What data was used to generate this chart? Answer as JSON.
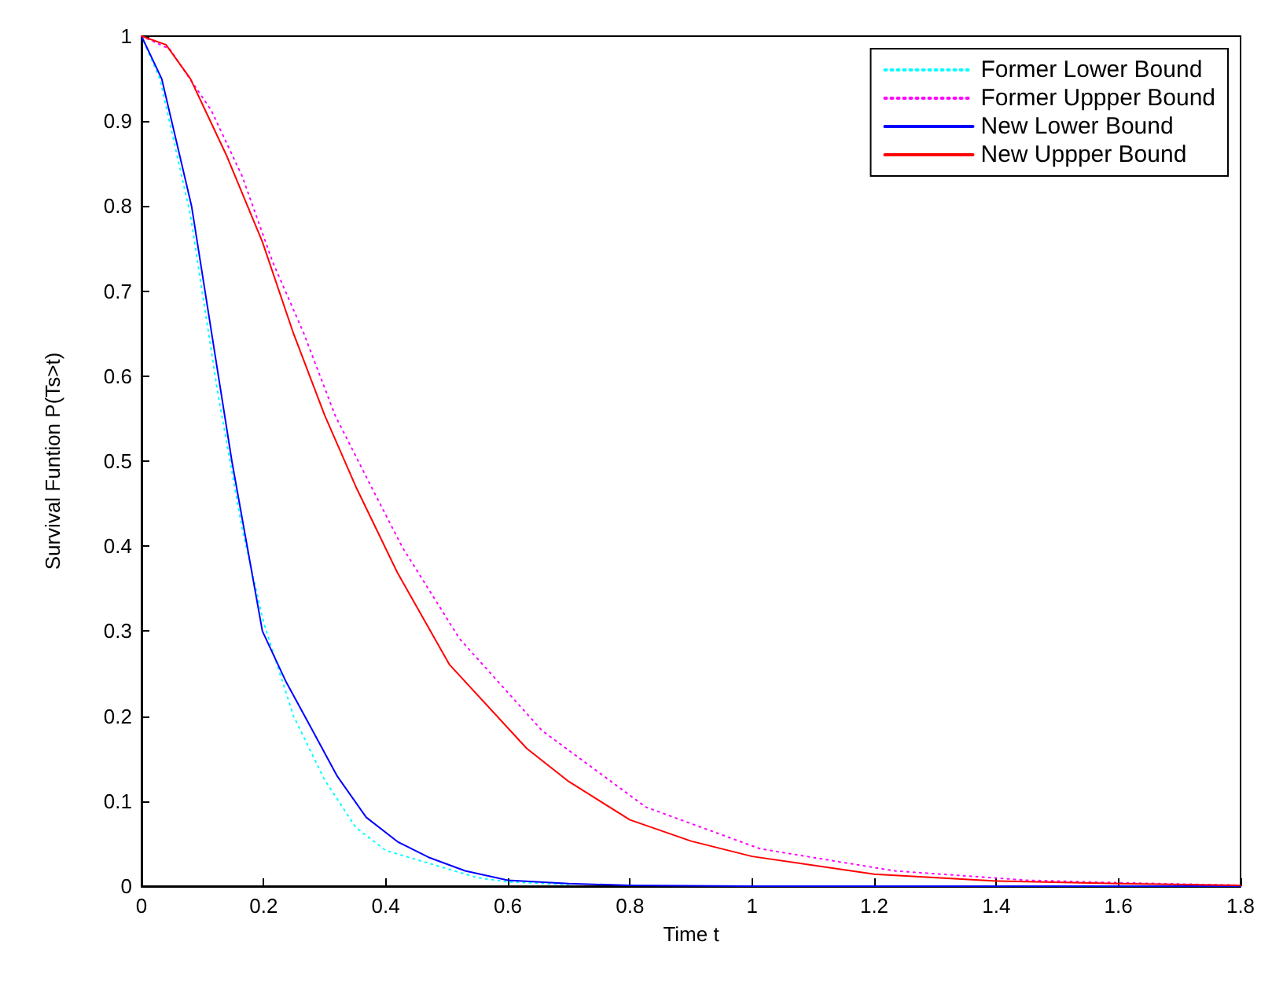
{
  "chart_data": {
    "type": "line",
    "xlabel": "Time t",
    "ylabel": "Survival Funtion P(Ts>t)",
    "xlim": [
      0,
      1.8
    ],
    "ylim": [
      0,
      1
    ],
    "xticks": [
      0,
      0.2,
      0.4,
      0.6,
      0.8,
      1,
      1.2,
      1.4,
      1.6,
      1.8
    ],
    "yticks": [
      0,
      0.1,
      0.2,
      0.3,
      0.4,
      0.5,
      0.6,
      0.7,
      0.8,
      0.9,
      1
    ],
    "grid": false,
    "legend": "top right",
    "marker": "none",
    "series": [
      {
        "name": "Former Lower Bound",
        "color": "#00ffff",
        "line_style": "dotted",
        "x": [
          0,
          0.03,
          0.08,
          0.125,
          0.165,
          0.2,
          0.249,
          0.3,
          0.351,
          0.4,
          0.47,
          0.55,
          0.6,
          0.7
        ],
        "values": [
          1,
          0.95,
          0.79,
          0.58,
          0.42,
          0.31,
          0.2,
          0.125,
          0.069,
          0.042,
          0.027,
          0.01,
          0.005,
          0.002
        ]
      },
      {
        "name": "Former Uppper Bound",
        "color": "#ff00ff",
        "line_style": "dotted",
        "x": [
          0,
          0.046,
          0.114,
          0.165,
          0.215,
          0.266,
          0.317,
          0.372,
          0.427,
          0.521,
          0.656,
          0.826,
          1.013,
          1.233,
          1.45,
          1.6,
          1.8
        ],
        "values": [
          1,
          0.985,
          0.913,
          0.835,
          0.734,
          0.65,
          0.554,
          0.476,
          0.399,
          0.291,
          0.183,
          0.093,
          0.044,
          0.018,
          0.007,
          0.004,
          0.001
        ]
      },
      {
        "name": "New Lower Bound",
        "color": "#0000ff",
        "line_style": "solid",
        "x": [
          0,
          0.033,
          0.082,
          0.126,
          0.148,
          0.198,
          0.237,
          0.275,
          0.32,
          0.368,
          0.42,
          0.47,
          0.53,
          0.6,
          0.7,
          0.8,
          1,
          1.8
        ],
        "values": [
          1,
          0.95,
          0.8,
          0.6,
          0.5,
          0.3,
          0.24,
          0.19,
          0.13,
          0.081,
          0.052,
          0.034,
          0.018,
          0.007,
          0.003,
          0.001,
          0,
          0
        ]
      },
      {
        "name": "New Uppper Bound",
        "color": "#ff0000",
        "line_style": "solid",
        "x": [
          0,
          0.04,
          0.08,
          0.139,
          0.198,
          0.249,
          0.3,
          0.351,
          0.419,
          0.504,
          0.631,
          0.7,
          0.8,
          0.9,
          1,
          1.2,
          1.4,
          1.6,
          1.8
        ],
        "values": [
          1,
          0.99,
          0.95,
          0.86,
          0.758,
          0.65,
          0.554,
          0.47,
          0.369,
          0.261,
          0.162,
          0.123,
          0.078,
          0.053,
          0.035,
          0.014,
          0.006,
          0.003,
          0.001
        ]
      }
    ]
  }
}
